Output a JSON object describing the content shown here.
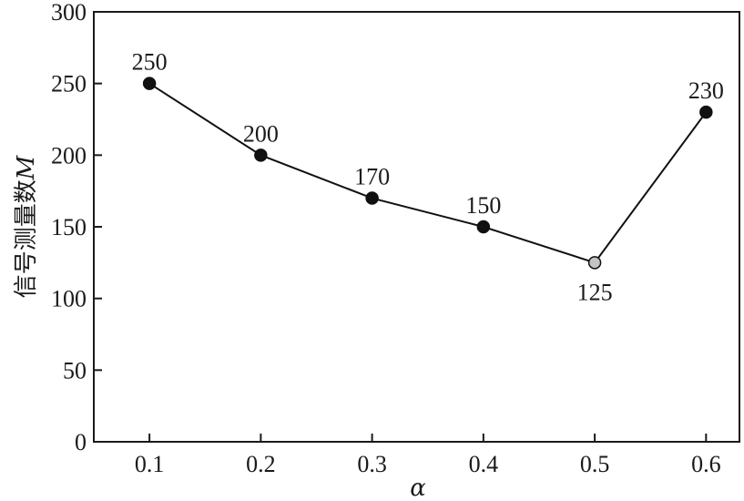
{
  "chart_data": {
    "type": "line",
    "title": "",
    "xlabel": "α",
    "ylabel": "信号测量数",
    "ylabel_symbol": "M",
    "x": [
      0.1,
      0.2,
      0.3,
      0.4,
      0.5,
      0.6
    ],
    "x_tick_labels": [
      "0.1",
      "0.2",
      "0.3",
      "0.4",
      "0.5",
      "0.6"
    ],
    "y_tick_labels": [
      "0",
      "50",
      "100",
      "150",
      "200",
      "250",
      "300"
    ],
    "xlim": [
      0.05,
      0.63
    ],
    "ylim": [
      0,
      300
    ],
    "grid": false,
    "series": [
      {
        "values": [
          250,
          200,
          170,
          150,
          125,
          230
        ],
        "data_labels": [
          "250",
          "200",
          "170",
          "150",
          "125",
          "230"
        ],
        "line_color": "#111111",
        "marker_color": "#111111",
        "highlight_index": 4,
        "highlight_color": "#c4c4c4"
      }
    ]
  }
}
